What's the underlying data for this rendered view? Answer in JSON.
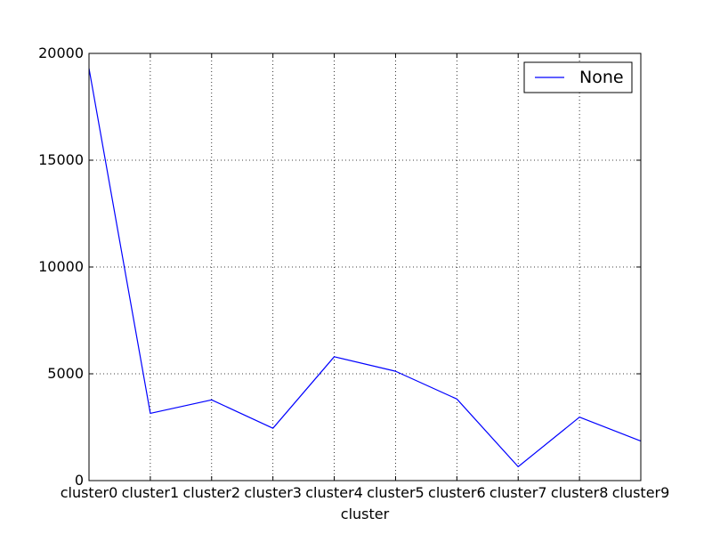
{
  "chart_data": {
    "type": "line",
    "xlabel": "cluster",
    "ylabel": "",
    "title": "",
    "categories": [
      "cluster0",
      "cluster1",
      "cluster2",
      "cluster3",
      "cluster4",
      "cluster5",
      "cluster6",
      "cluster7",
      "cluster8",
      "cluster9"
    ],
    "series": [
      {
        "name": "None",
        "color": "#0000ff",
        "values": [
          19300,
          3150,
          3780,
          2450,
          5800,
          5120,
          3820,
          650,
          2970,
          1850
        ]
      }
    ],
    "ylim": [
      0,
      20000
    ],
    "yticks": [
      0,
      5000,
      10000,
      15000,
      20000
    ],
    "grid": true,
    "grid_style": "dotted",
    "legend_position": "top-right"
  }
}
